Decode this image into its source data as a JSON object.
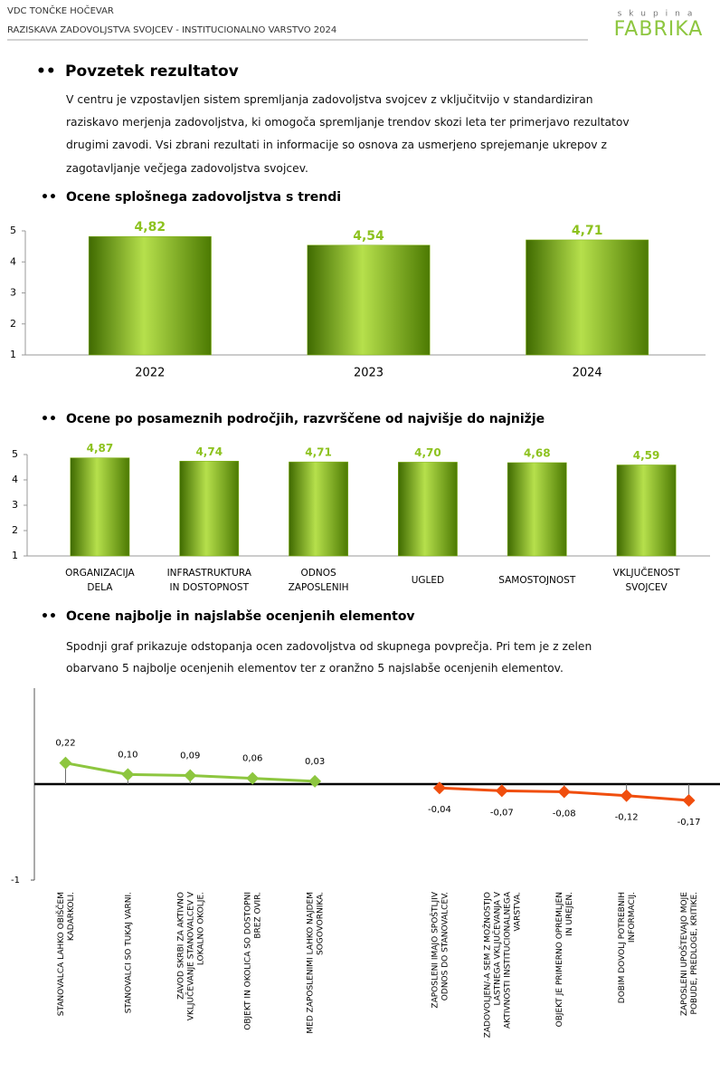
{
  "header": {
    "org": "VDC TONČKE HOČEVAR",
    "survey": "RAZISKAVA ZADOVOLJSTVA SVOJCEV - INSTITUCIONALNO VARSTVO 2024",
    "logo_top": "skupina",
    "logo": "FABRIKA"
  },
  "summary": {
    "title": "Povzetek rezultatov",
    "paragraph": [
      "V centru je vzpostavljen sistem spremljanja zadovoljstva svojcev z vključitvijo v standardiziran",
      "raziskavo merjenja zadovoljstva, ki omogoča spremljanje trendov skozi leta ter primerjavo rezultatov",
      "drugimi zavodi. Vsi zbrani rezultati in informacije so osnova za usmerjeno sprejemanje ukrepov z",
      "zagotavljanje večjega zadovoljstva svojcev."
    ]
  },
  "chart_data": [
    {
      "type": "bar",
      "title": "Ocene splošnega zadovoljstva s trendi",
      "categories": [
        "2022",
        "2023",
        "2024"
      ],
      "values": [
        4.82,
        4.54,
        4.71
      ],
      "value_labels": [
        "4,82",
        "4,54",
        "4,71"
      ],
      "color": "#7fb20f",
      "ylim": [
        1,
        5
      ],
      "yticks": [
        1,
        2,
        3,
        4,
        5
      ]
    },
    {
      "type": "bar",
      "title": "Ocene po posameznih področjih, razvrščene od najvišje do najnižje",
      "categories": [
        "ORGANIZACIJA DELA",
        "INFRASTRUKTURA IN DOSTOPNOST",
        "ODNOS ZAPOSLENIH",
        "UGLED",
        "SAMOSTOJNOST",
        "VKLJUČENOST SVOJCEV"
      ],
      "values": [
        4.87,
        4.74,
        4.71,
        4.7,
        4.68,
        4.59
      ],
      "value_labels": [
        "4,87",
        "4,74",
        "4,71",
        "4,70",
        "4,68",
        "4,59"
      ],
      "color": "#7fb20f",
      "ylim": [
        1,
        5
      ],
      "yticks": [
        1,
        2,
        3,
        4,
        5
      ]
    },
    {
      "type": "line",
      "title": "Ocene najbolje in najslabše ocenjenih elementov",
      "text": [
        "Spodnji graf prikazuje odstopanja ocen zadovoljstva od skupnega povprečja. Pri tem je z zelen",
        "obarvano 5 najbolje ocenjenih elementov ter z oranžno 5 najslabše ocenjenih elementov."
      ],
      "categories": [
        "STANOVALCA LAHKO OBIŠČEM KADARKOLI.",
        "STANOVALCI SO TUKAJ VARNI.",
        "ZAVOD SKRBI ZA AKTIVNO VKLJUČEVANJE STANOVALCEV V LOKALNO OKOLJE.",
        "OBJEKT IN OKOLICA SO DOSTOPNI BREZ OVIR.",
        "MED ZAPOSLENIMI LAHKO NAJDEM SOGOVORNIKA.",
        null,
        "ZAPOSLENI IMAJO SPOŠTLJIV ODNOS DO STANOVALCEV.",
        "ZADOVOLJEN/-A SEM Z MOŽNOSTJO LASTNEGA VKLJUČEVANJA V AKTIVNOSTI INSTITUCIONALNEGA VARSTVA.",
        "OBJEKT JE PRIMERNO OPREMLJEN IN UREJEN.",
        "DOBIM DOVOLJ POTREBNIH INFORMACIJ.",
        "ZAPOSLENI UPOŠTEVAJO MOJE POBUDE, PREDLOGE, KRITIKE."
      ],
      "series": [
        {
          "color": "#8dc63f",
          "values": [
            0.22,
            0.1,
            0.09,
            0.06,
            0.03,
            null,
            null,
            null,
            null,
            null,
            null
          ],
          "value_labels": [
            "0,22",
            "0,10",
            "0,09",
            "0,06",
            "0,03",
            null,
            null,
            null,
            null,
            null,
            null
          ]
        },
        {
          "color": "#f04e0e",
          "values": [
            null,
            null,
            null,
            null,
            null,
            null,
            -0.04,
            -0.07,
            -0.08,
            -0.12,
            -0.17
          ],
          "value_labels": [
            null,
            null,
            null,
            null,
            null,
            null,
            "-0,04",
            "-0,07",
            "-0,08",
            "-0,12",
            "-0,17"
          ]
        }
      ],
      "ylim": [
        -1,
        1
      ],
      "yticks": [
        -1
      ]
    }
  ]
}
